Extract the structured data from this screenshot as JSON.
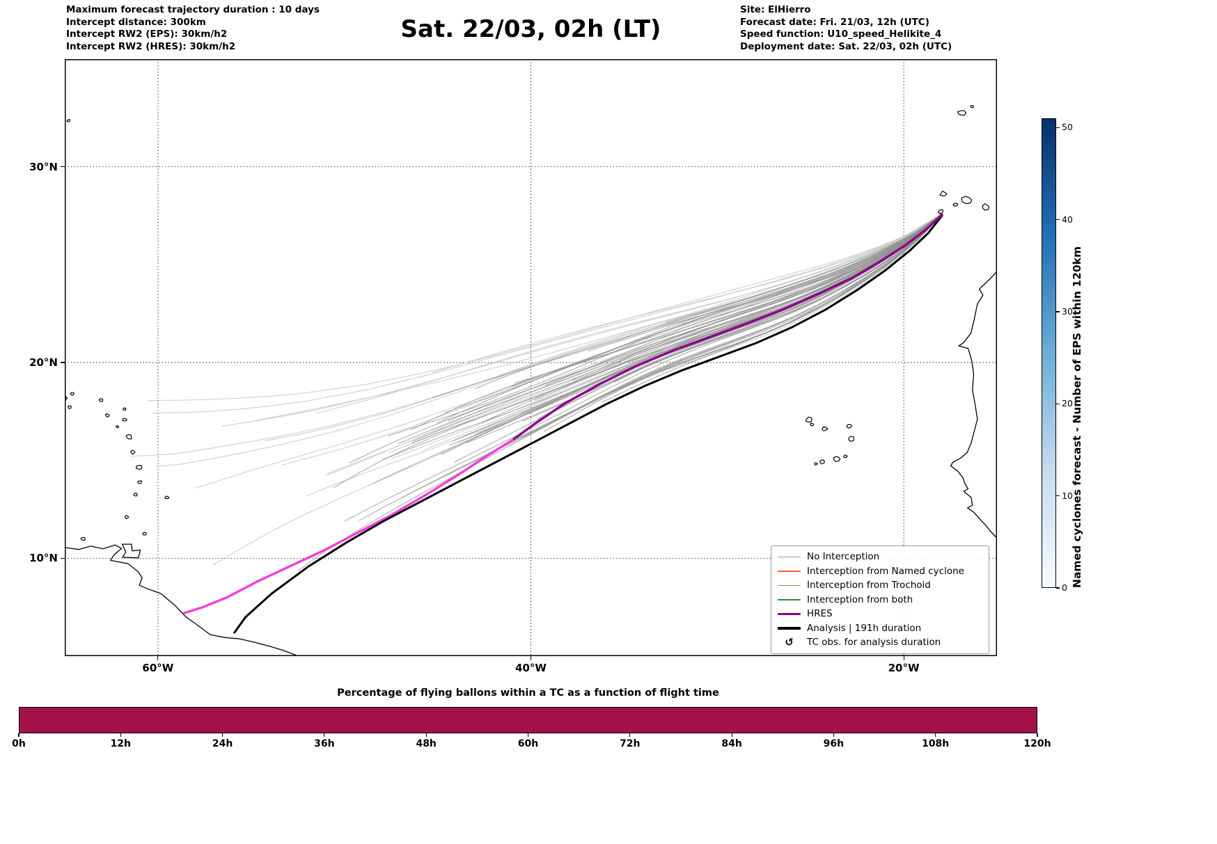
{
  "header": {
    "left": [
      "Maximum forecast trajectory duration : 10 days",
      "Intercept distance: 300km",
      "Intercept RW2 (EPS):  30km/h2",
      "Intercept RW2 (HRES): 30km/h2"
    ],
    "title": "Sat. 22/03, 02h (LT)",
    "right": [
      "Site: ElHierro",
      "Forecast date: Fri. 21/03, 12h (UTC)",
      "Speed function: U10_speed_Helikite_4",
      "Deployment date: Sat. 22/03, 02h (UTC)"
    ]
  },
  "legend": {
    "items": [
      {
        "label": "No Interception",
        "color": "#9a9a9a",
        "lw": 1.5
      },
      {
        "label": "Interception from Named cyclone",
        "color": "#ff5a33",
        "lw": 1.5
      },
      {
        "label": "Interception from Trochoid",
        "color": "#9a9440",
        "lw": 1.5
      },
      {
        "label": "Interception from both",
        "color": "#2e8b2e",
        "lw": 1.5
      },
      {
        "label": "HRES",
        "color": "#8b008b",
        "lw": 3.5
      },
      {
        "label": "Analysis | 191h duration",
        "color": "#000000",
        "lw": 3.5
      },
      {
        "label": "TC obs. for analysis duration",
        "symbol": "↺",
        "color": "#000000"
      }
    ]
  },
  "colorbar": {
    "label": "Named cyclones forecast - Number of EPS within 120km",
    "vmin": 0,
    "vmax": 51,
    "ticks": [
      0,
      10,
      20,
      30,
      40,
      50
    ],
    "stops": [
      "#f7fbff",
      "#c6dbef",
      "#6baed6",
      "#2171b5",
      "#08306b"
    ]
  },
  "chart_data": [
    {
      "type": "trajectory-map",
      "site": "ElHierro",
      "deployment_point": {
        "lon": -18.0,
        "lat": 27.7
      },
      "extent": {
        "lon_min": -65,
        "lon_max": -15,
        "lat_min": 5,
        "lat_max": 35.5
      },
      "x_ticks": [
        {
          "lon": -60,
          "label": "60°W"
        },
        {
          "lon": -40,
          "label": "40°W"
        },
        {
          "lon": -20,
          "label": "20°W"
        }
      ],
      "y_ticks": [
        {
          "lat": 30,
          "label": "30°N"
        },
        {
          "lat": 20,
          "label": "20°N"
        },
        {
          "lat": 10,
          "label": "10°N"
        }
      ],
      "trajectories": {
        "analysis": {
          "label": "Analysis | 191h duration",
          "color": "#000000",
          "points": [
            [
              -17.95,
              27.5
            ],
            [
              -18.7,
              26.6
            ],
            [
              -19.7,
              25.7
            ],
            [
              -21.0,
              24.7
            ],
            [
              -22.5,
              23.7
            ],
            [
              -24.2,
              22.7
            ],
            [
              -26.0,
              21.8
            ],
            [
              -27.9,
              21.0
            ],
            [
              -29.9,
              20.3
            ],
            [
              -31.9,
              19.6
            ],
            [
              -33.9,
              18.8
            ],
            [
              -35.9,
              17.9
            ],
            [
              -37.9,
              16.9
            ],
            [
              -39.9,
              15.9
            ],
            [
              -41.9,
              14.9
            ],
            [
              -43.9,
              13.9
            ],
            [
              -45.9,
              12.9
            ],
            [
              -47.9,
              11.9
            ],
            [
              -49.9,
              10.8
            ],
            [
              -51.9,
              9.6
            ],
            [
              -53.9,
              8.2
            ],
            [
              -55.3,
              7.0
            ],
            [
              -55.9,
              6.2
            ]
          ]
        },
        "hres": {
          "label": "HRES",
          "color": "#8b008b",
          "points": [
            [
              -17.95,
              27.55
            ],
            [
              -18.8,
              26.8
            ],
            [
              -19.9,
              26.0
            ],
            [
              -21.2,
              25.2
            ],
            [
              -22.8,
              24.3
            ],
            [
              -24.6,
              23.5
            ],
            [
              -26.5,
              22.7
            ],
            [
              -28.4,
              22.0
            ],
            [
              -30.4,
              21.3
            ],
            [
              -32.4,
              20.6
            ],
            [
              -34.4,
              19.8
            ],
            [
              -36.3,
              18.9
            ],
            [
              -38.2,
              17.9
            ],
            [
              -39.9,
              16.8
            ],
            [
              -40.9,
              16.1
            ]
          ]
        },
        "magenta_member": {
          "label": "highlighted member",
          "color": "#ef3fd8",
          "points": [
            [
              -40.9,
              16.1
            ],
            [
              -42.4,
              15.2
            ],
            [
              -44.0,
              14.2
            ],
            [
              -45.7,
              13.2
            ],
            [
              -47.5,
              12.2
            ],
            [
              -49.3,
              11.3
            ],
            [
              -51.1,
              10.4
            ],
            [
              -52.9,
              9.6
            ],
            [
              -54.7,
              8.8
            ],
            [
              -56.3,
              8.0
            ],
            [
              -57.6,
              7.5
            ],
            [
              -58.6,
              7.2
            ]
          ]
        }
      },
      "ensemble": {
        "seed": 7,
        "count_dark": 45,
        "count_light": 22,
        "color_dark": "#8f8f8f",
        "color_light": "#c9c9c9",
        "north_boundary": [
          [
            -17.95,
            27.6
          ],
          [
            -19.6,
            26.5
          ],
          [
            -21.6,
            25.6
          ],
          [
            -24.0,
            24.7
          ],
          [
            -26.6,
            23.9
          ],
          [
            -29.3,
            23.1
          ],
          [
            -32.1,
            22.3
          ],
          [
            -35.0,
            21.4
          ],
          [
            -38.0,
            20.5
          ],
          [
            -41.0,
            19.6
          ],
          [
            -44.0,
            18.7
          ],
          [
            -47.0,
            17.8
          ],
          [
            -50.0,
            16.9
          ]
        ],
        "outer_boundary": [
          [
            -17.95,
            27.6
          ],
          [
            -20.3,
            26.3
          ],
          [
            -23.2,
            25.3
          ],
          [
            -26.6,
            24.4
          ],
          [
            -30.2,
            23.5
          ],
          [
            -34.0,
            22.6
          ],
          [
            -37.8,
            21.7
          ],
          [
            -41.6,
            20.8
          ],
          [
            -45.4,
            19.9
          ],
          [
            -49.2,
            19.1
          ],
          [
            -53.0,
            18.5
          ],
          [
            -56.8,
            18.2
          ],
          [
            -60.4,
            18.2
          ],
          [
            -63.6,
            18.5
          ]
        ]
      },
      "coastlines": [
        {
          "name": "africa",
          "points": [
            [
              -14.9,
              24.75
            ],
            [
              -15.35,
              24.3
            ],
            [
              -15.95,
              23.75
            ],
            [
              -15.75,
              23.45
            ],
            [
              -16.05,
              23.0
            ],
            [
              -16.2,
              22.3
            ],
            [
              -16.4,
              21.5
            ],
            [
              -16.78,
              21.02
            ],
            [
              -17.05,
              20.85
            ],
            [
              -16.55,
              20.72
            ],
            [
              -16.35,
              20.1
            ],
            [
              -16.25,
              19.4
            ],
            [
              -16.32,
              18.6
            ],
            [
              -16.18,
              17.9
            ],
            [
              -16.05,
              17.1
            ],
            [
              -16.22,
              16.5
            ],
            [
              -16.38,
              15.9
            ],
            [
              -16.6,
              15.4
            ],
            [
              -16.98,
              15.1
            ],
            [
              -17.38,
              14.9
            ],
            [
              -17.48,
              14.72
            ],
            [
              -17.1,
              14.45
            ],
            [
              -16.82,
              14.1
            ],
            [
              -16.72,
              13.8
            ],
            [
              -16.55,
              13.55
            ],
            [
              -16.78,
              13.42
            ],
            [
              -16.38,
              13.1
            ],
            [
              -16.32,
              12.7
            ],
            [
              -16.58,
              12.58
            ],
            [
              -16.22,
              12.33
            ],
            [
              -15.92,
              12.0
            ],
            [
              -15.62,
              11.7
            ],
            [
              -15.35,
              11.38
            ],
            [
              -15.05,
              11.08
            ],
            [
              -14.9,
              10.92
            ]
          ]
        },
        {
          "name": "south-america",
          "points": [
            [
              -65.0,
              10.55
            ],
            [
              -64.25,
              10.45
            ],
            [
              -63.6,
              10.62
            ],
            [
              -62.95,
              10.48
            ],
            [
              -62.3,
              10.68
            ],
            [
              -61.95,
              10.5
            ],
            [
              -62.35,
              10.18
            ],
            [
              -62.55,
              9.9
            ],
            [
              -62.15,
              9.82
            ],
            [
              -61.6,
              9.72
            ],
            [
              -61.05,
              9.3
            ],
            [
              -60.85,
              9.0
            ],
            [
              -61.0,
              8.62
            ],
            [
              -60.5,
              8.42
            ],
            [
              -59.85,
              8.2
            ],
            [
              -59.1,
              7.6
            ],
            [
              -58.5,
              7.0
            ],
            [
              -57.9,
              6.6
            ],
            [
              -57.2,
              6.1
            ],
            [
              -56.4,
              5.95
            ],
            [
              -55.6,
              5.88
            ],
            [
              -54.8,
              5.7
            ],
            [
              -54.0,
              5.5
            ],
            [
              -53.3,
              5.3
            ],
            [
              -52.6,
              5.05
            ]
          ]
        },
        {
          "name": "trinidad",
          "closed": true,
          "points": [
            [
              -61.9,
              10.05
            ],
            [
              -61.05,
              10.02
            ],
            [
              -60.95,
              10.42
            ],
            [
              -61.38,
              10.38
            ],
            [
              -61.42,
              10.72
            ],
            [
              -61.92,
              10.72
            ],
            [
              -61.72,
              10.32
            ]
          ]
        },
        {
          "name": "puerto-rico",
          "points": [
            [
              -65.0,
              18.02
            ],
            [
              -64.88,
              18.18
            ],
            [
              -65.0,
              18.32
            ]
          ]
        }
      ],
      "islands": [
        {
          "name": "bermuda",
          "lon": -64.8,
          "lat": 32.35,
          "r": 2.5
        },
        {
          "name": "madeira",
          "lon": -16.9,
          "lat": 32.75,
          "r": 5
        },
        {
          "name": "porto-santo",
          "lon": -16.33,
          "lat": 33.08,
          "r": 2.5
        },
        {
          "name": "la-palma",
          "lon": -17.87,
          "lat": 28.62,
          "r": 4.5
        },
        {
          "name": "el-hierro",
          "lon": -18.02,
          "lat": 27.72,
          "r": 3.5
        },
        {
          "name": "la-gomera",
          "lon": -17.22,
          "lat": 28.08,
          "r": 3
        },
        {
          "name": "tenerife",
          "lon": -16.62,
          "lat": 28.3,
          "r": 6.5
        },
        {
          "name": "gran-canaria",
          "lon": -15.6,
          "lat": 27.93,
          "r": 5.5
        },
        {
          "name": "santo-antao",
          "lon": -25.08,
          "lat": 17.08,
          "r": 4.5
        },
        {
          "name": "sao-vicente",
          "lon": -24.93,
          "lat": 16.83,
          "r": 2.5
        },
        {
          "name": "sao-nicolau",
          "lon": -24.25,
          "lat": 16.6,
          "r": 3.5
        },
        {
          "name": "sal",
          "lon": -22.93,
          "lat": 16.75,
          "r": 3
        },
        {
          "name": "boa-vista",
          "lon": -22.8,
          "lat": 16.1,
          "r": 4
        },
        {
          "name": "maio",
          "lon": -23.15,
          "lat": 15.2,
          "r": 2.5
        },
        {
          "name": "santiago",
          "lon": -23.62,
          "lat": 15.08,
          "r": 4.5
        },
        {
          "name": "fogo",
          "lon": -24.38,
          "lat": 14.92,
          "r": 3.5
        },
        {
          "name": "brava",
          "lon": -24.72,
          "lat": 14.83,
          "r": 2
        },
        {
          "name": "virgin-islands",
          "lon": -64.6,
          "lat": 18.4,
          "r": 2.5
        },
        {
          "name": "st-croix",
          "lon": -64.75,
          "lat": 17.73,
          "r": 2.5
        },
        {
          "name": "st-martin",
          "lon": -63.05,
          "lat": 18.07,
          "r": 2.5
        },
        {
          "name": "st-kitts",
          "lon": -62.72,
          "lat": 17.3,
          "r": 2.5
        },
        {
          "name": "barbuda",
          "lon": -61.8,
          "lat": 17.62,
          "r": 2
        },
        {
          "name": "antigua",
          "lon": -61.78,
          "lat": 17.07,
          "r": 2.8
        },
        {
          "name": "montserrat",
          "lon": -62.18,
          "lat": 16.72,
          "r": 2
        },
        {
          "name": "guadeloupe",
          "lon": -61.55,
          "lat": 16.2,
          "r": 4
        },
        {
          "name": "dominica",
          "lon": -61.35,
          "lat": 15.42,
          "r": 3.2
        },
        {
          "name": "martinique",
          "lon": -61.0,
          "lat": 14.65,
          "r": 3.6
        },
        {
          "name": "st-lucia",
          "lon": -60.98,
          "lat": 13.88,
          "r": 3.2
        },
        {
          "name": "st-vincent",
          "lon": -61.2,
          "lat": 13.25,
          "r": 2.4
        },
        {
          "name": "grenada",
          "lon": -61.67,
          "lat": 12.1,
          "r": 2.6
        },
        {
          "name": "barbados",
          "lon": -59.53,
          "lat": 13.1,
          "r": 2.6
        },
        {
          "name": "tobago",
          "lon": -60.72,
          "lat": 11.25,
          "r": 2.4
        },
        {
          "name": "margarita",
          "lon": -64.0,
          "lat": 10.98,
          "r": 3
        }
      ]
    },
    {
      "type": "bar",
      "title": "Percentage of flying ballons within a TC as a function of flight time",
      "bar_color": "#a31246",
      "x_range_hours": [
        0,
        120
      ],
      "x_tick_labels": [
        "0h",
        "12h",
        "24h",
        "36h",
        "48h",
        "60h",
        "72h",
        "84h",
        "96h",
        "108h",
        "120h"
      ],
      "values_percent": [
        100,
        100,
        100,
        100,
        100,
        100,
        100,
        100,
        100,
        100,
        100
      ]
    }
  ]
}
